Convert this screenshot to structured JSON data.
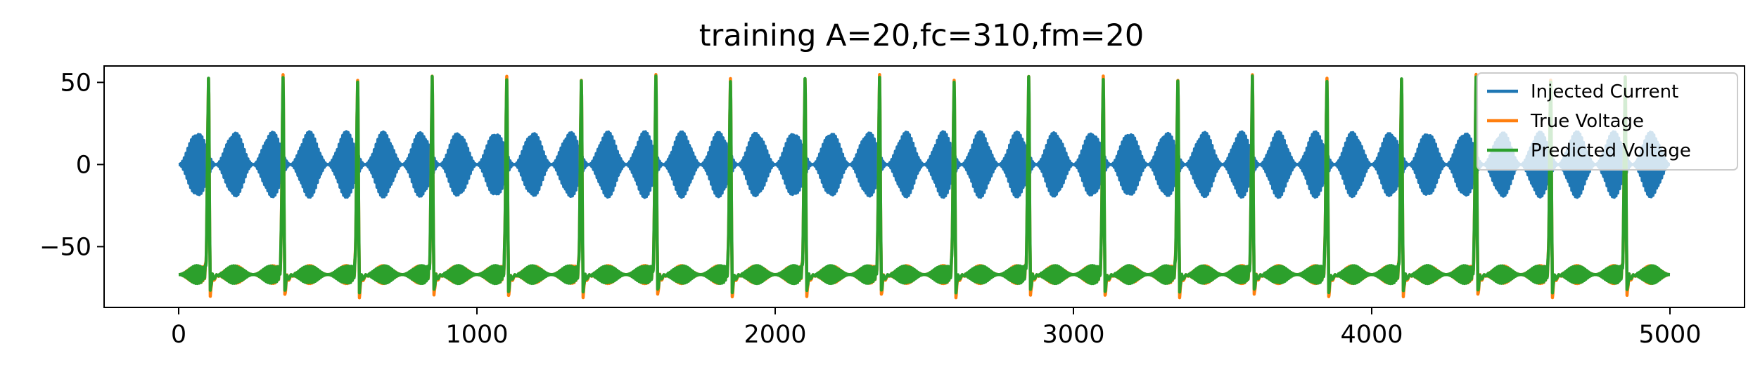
{
  "chart_data": {
    "type": "line",
    "title": "training A=20,fc=310,fm=20",
    "xlabel": "",
    "ylabel": "",
    "xlim": [
      -250,
      5250
    ],
    "ylim": [
      -87,
      60
    ],
    "x_ticks": [
      0,
      1000,
      2000,
      3000,
      4000,
      5000
    ],
    "x_tick_labels": [
      "0",
      "1000",
      "2000",
      "3000",
      "4000",
      "5000"
    ],
    "y_ticks": [
      50,
      0,
      -50
    ],
    "y_tick_labels": [
      "50",
      "0",
      "−50"
    ],
    "grid": false,
    "legend_position": "top-right",
    "x_range": [
      0,
      5000
    ],
    "spike_times": [
      100,
      350,
      600,
      850,
      1100,
      1350,
      1600,
      1850,
      2100,
      2350,
      2600,
      2850,
      3100,
      3350,
      3600,
      3850,
      4100,
      4350,
      4600,
      4850
    ],
    "series": [
      {
        "name": "Injected Current",
        "color": "#1f77b4",
        "amplitude": 20,
        "carrier_hz": 310,
        "modulation_hz": 20,
        "baseline": 0
      },
      {
        "name": "True Voltage",
        "color": "#ff7f0e",
        "baseline": -67,
        "spike_peak": 53,
        "trough": -80
      },
      {
        "name": "Predicted Voltage",
        "color": "#2ca02c",
        "baseline": -67,
        "spike_peak": 52,
        "trough": -77
      }
    ]
  }
}
